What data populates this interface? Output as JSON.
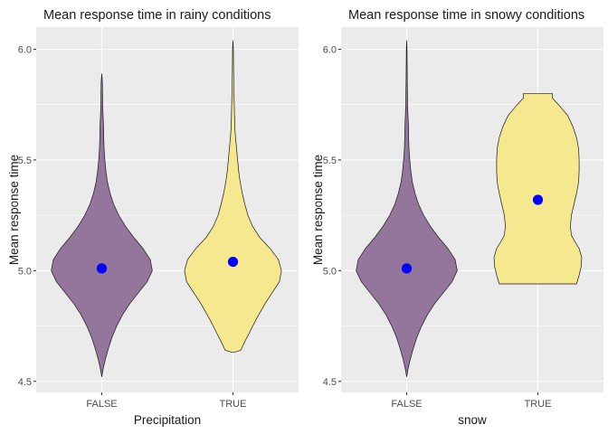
{
  "chart_data": [
    {
      "type": "violin",
      "title": "Mean response time in rainy conditions",
      "xlabel": "Precipitation",
      "ylabel": "Mean response time",
      "categories": [
        "FALSE",
        "TRUE"
      ],
      "ylim": [
        4.45,
        6.1
      ],
      "yticks": [
        4.5,
        5.0,
        5.5,
        6.0
      ],
      "ytick_labels": [
        "4.5",
        "5.0",
        "5.5",
        "6.0"
      ],
      "fills": [
        "#8f6f97",
        "#f5e88a"
      ],
      "mean_color": "#0000ff",
      "grid": true,
      "violins": [
        {
          "category": "FALSE",
          "min": 4.52,
          "max": 5.89,
          "mean": 5.01,
          "profile": [
            [
              4.52,
              0.0
            ],
            [
              4.56,
              0.03
            ],
            [
              4.6,
              0.07
            ],
            [
              4.65,
              0.13
            ],
            [
              4.7,
              0.2
            ],
            [
              4.75,
              0.29
            ],
            [
              4.8,
              0.4
            ],
            [
              4.85,
              0.54
            ],
            [
              4.9,
              0.71
            ],
            [
              4.95,
              0.88
            ],
            [
              5.0,
              0.98
            ],
            [
              5.05,
              0.94
            ],
            [
              5.1,
              0.8
            ],
            [
              5.15,
              0.62
            ],
            [
              5.2,
              0.46
            ],
            [
              5.25,
              0.33
            ],
            [
              5.3,
              0.23
            ],
            [
              5.35,
              0.16
            ],
            [
              5.4,
              0.11
            ],
            [
              5.45,
              0.08
            ],
            [
              5.5,
              0.06
            ],
            [
              5.55,
              0.045
            ],
            [
              5.6,
              0.038
            ],
            [
              5.65,
              0.035
            ],
            [
              5.7,
              0.025
            ],
            [
              5.75,
              0.018
            ],
            [
              5.8,
              0.016
            ],
            [
              5.85,
              0.012
            ],
            [
              5.89,
              0.0
            ]
          ]
        },
        {
          "category": "TRUE",
          "min": 4.63,
          "max": 6.04,
          "mean": 5.04,
          "profile": [
            [
              4.63,
              0.0
            ],
            [
              4.64,
              0.15
            ],
            [
              4.68,
              0.23
            ],
            [
              4.72,
              0.32
            ],
            [
              4.78,
              0.45
            ],
            [
              4.85,
              0.62
            ],
            [
              4.9,
              0.76
            ],
            [
              4.95,
              0.9
            ],
            [
              5.0,
              0.94
            ],
            [
              5.05,
              0.88
            ],
            [
              5.1,
              0.72
            ],
            [
              5.15,
              0.52
            ],
            [
              5.2,
              0.38
            ],
            [
              5.25,
              0.29
            ],
            [
              5.3,
              0.23
            ],
            [
              5.35,
              0.18
            ],
            [
              5.4,
              0.14
            ],
            [
              5.45,
              0.11
            ],
            [
              5.5,
              0.09
            ],
            [
              5.55,
              0.07
            ],
            [
              5.6,
              0.05
            ],
            [
              5.65,
              0.035
            ],
            [
              5.7,
              0.03
            ],
            [
              5.75,
              0.025
            ],
            [
              5.8,
              0.02
            ],
            [
              5.85,
              0.015
            ],
            [
              5.9,
              0.012
            ],
            [
              5.95,
              0.01
            ],
            [
              6.0,
              0.008
            ],
            [
              6.04,
              0.0
            ]
          ]
        }
      ]
    },
    {
      "type": "violin",
      "title": "Mean response time in snowy conditions",
      "xlabel": "snow",
      "ylabel": "Mean response time",
      "categories": [
        "FALSE",
        "TRUE"
      ],
      "ylim": [
        4.45,
        6.1
      ],
      "yticks": [
        4.5,
        5.0,
        5.5,
        6.0
      ],
      "ytick_labels": [
        "4.5",
        "5.0",
        "5.5",
        "6.0"
      ],
      "fills": [
        "#8f6f97",
        "#f5e88a"
      ],
      "mean_color": "#0000ff",
      "grid": true,
      "violins": [
        {
          "category": "FALSE",
          "min": 4.52,
          "max": 6.04,
          "mean": 5.01,
          "profile": [
            [
              4.52,
              0.0
            ],
            [
              4.56,
              0.03
            ],
            [
              4.6,
              0.07
            ],
            [
              4.65,
              0.13
            ],
            [
              4.7,
              0.2
            ],
            [
              4.75,
              0.29
            ],
            [
              4.8,
              0.4
            ],
            [
              4.85,
              0.54
            ],
            [
              4.9,
              0.71
            ],
            [
              4.95,
              0.88
            ],
            [
              5.0,
              0.98
            ],
            [
              5.05,
              0.94
            ],
            [
              5.1,
              0.8
            ],
            [
              5.15,
              0.62
            ],
            [
              5.2,
              0.46
            ],
            [
              5.25,
              0.33
            ],
            [
              5.3,
              0.23
            ],
            [
              5.35,
              0.16
            ],
            [
              5.4,
              0.11
            ],
            [
              5.45,
              0.08
            ],
            [
              5.5,
              0.06
            ],
            [
              5.55,
              0.045
            ],
            [
              5.6,
              0.038
            ],
            [
              5.65,
              0.035
            ],
            [
              5.7,
              0.025
            ],
            [
              5.75,
              0.018
            ],
            [
              5.8,
              0.016
            ],
            [
              5.85,
              0.012
            ],
            [
              5.9,
              0.01
            ],
            [
              5.95,
              0.008
            ],
            [
              6.0,
              0.006
            ],
            [
              6.04,
              0.0
            ]
          ]
        },
        {
          "category": "TRUE",
          "min": 4.94,
          "max": 5.8,
          "mean": 5.32,
          "profile": [
            [
              4.94,
              0.75
            ],
            [
              4.98,
              0.8
            ],
            [
              5.02,
              0.84
            ],
            [
              5.06,
              0.85
            ],
            [
              5.1,
              0.8
            ],
            [
              5.13,
              0.72
            ],
            [
              5.16,
              0.65
            ],
            [
              5.2,
              0.63
            ],
            [
              5.25,
              0.65
            ],
            [
              5.3,
              0.7
            ],
            [
              5.35,
              0.75
            ],
            [
              5.4,
              0.79
            ],
            [
              5.45,
              0.8
            ],
            [
              5.5,
              0.8
            ],
            [
              5.55,
              0.79
            ],
            [
              5.6,
              0.75
            ],
            [
              5.65,
              0.68
            ],
            [
              5.7,
              0.58
            ],
            [
              5.75,
              0.4
            ],
            [
              5.78,
              0.28
            ],
            [
              5.8,
              0.28
            ]
          ]
        }
      ]
    }
  ]
}
